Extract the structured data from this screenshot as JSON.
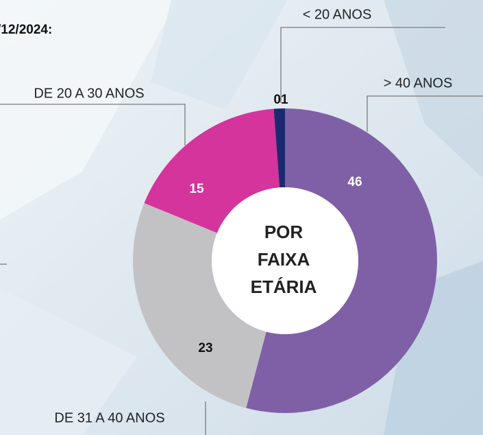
{
  "chart_data": {
    "type": "donut",
    "title": "/12/2024:",
    "center_label": [
      "POR",
      "FAIXA",
      "ETÁRIA"
    ],
    "categories": [
      "> 40 ANOS",
      "DE 31 A 40 ANOS",
      "DE 20 A 30 ANOS",
      "< 20 ANOS"
    ],
    "values": [
      46,
      23,
      15,
      1
    ],
    "value_labels": [
      "46",
      "23",
      "15",
      "01"
    ],
    "colors": [
      "#7f60a7",
      "#c2c2c4",
      "#d4349b",
      "#1b2a6e"
    ]
  }
}
